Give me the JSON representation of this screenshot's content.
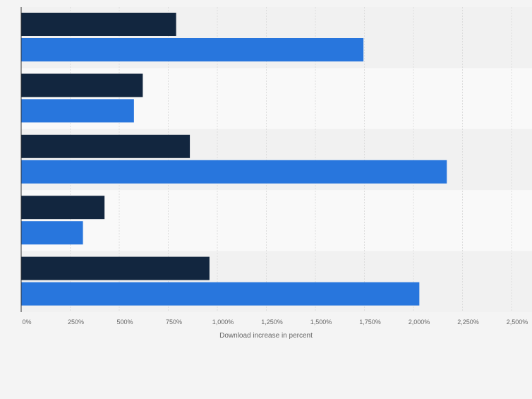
{
  "chart_data": {
    "type": "bar",
    "orientation": "horizontal",
    "categories": [
      "",
      "",
      "",
      "",
      ""
    ],
    "series": [
      {
        "values": [
          790,
          620,
          860,
          425,
          960
        ]
      },
      {
        "values": [
          1745,
          575,
          2170,
          315,
          2030
        ]
      }
    ],
    "xlabel": "Download increase in percent",
    "ylabel": "",
    "xlim": [
      0,
      2500
    ],
    "tick_values": [
      0,
      250,
      500,
      750,
      1000,
      1250,
      1500,
      1750,
      2000,
      2250,
      2500
    ],
    "tick_labels": [
      "0%",
      "250%",
      "500%",
      "750%",
      "1,000%",
      "1,250%",
      "1,500%",
      "1,750%",
      "2,000%",
      "2,250%",
      "2,500%"
    ],
    "grid": true,
    "legend": "none",
    "colors": {
      "series_dark": "#12263f",
      "series_blue": "#2876dd",
      "band_dark": "#f1f1f1",
      "band_light": "#f9f9f9",
      "grid": "#dddddd",
      "axis": "#333333",
      "text": "#666666"
    }
  }
}
